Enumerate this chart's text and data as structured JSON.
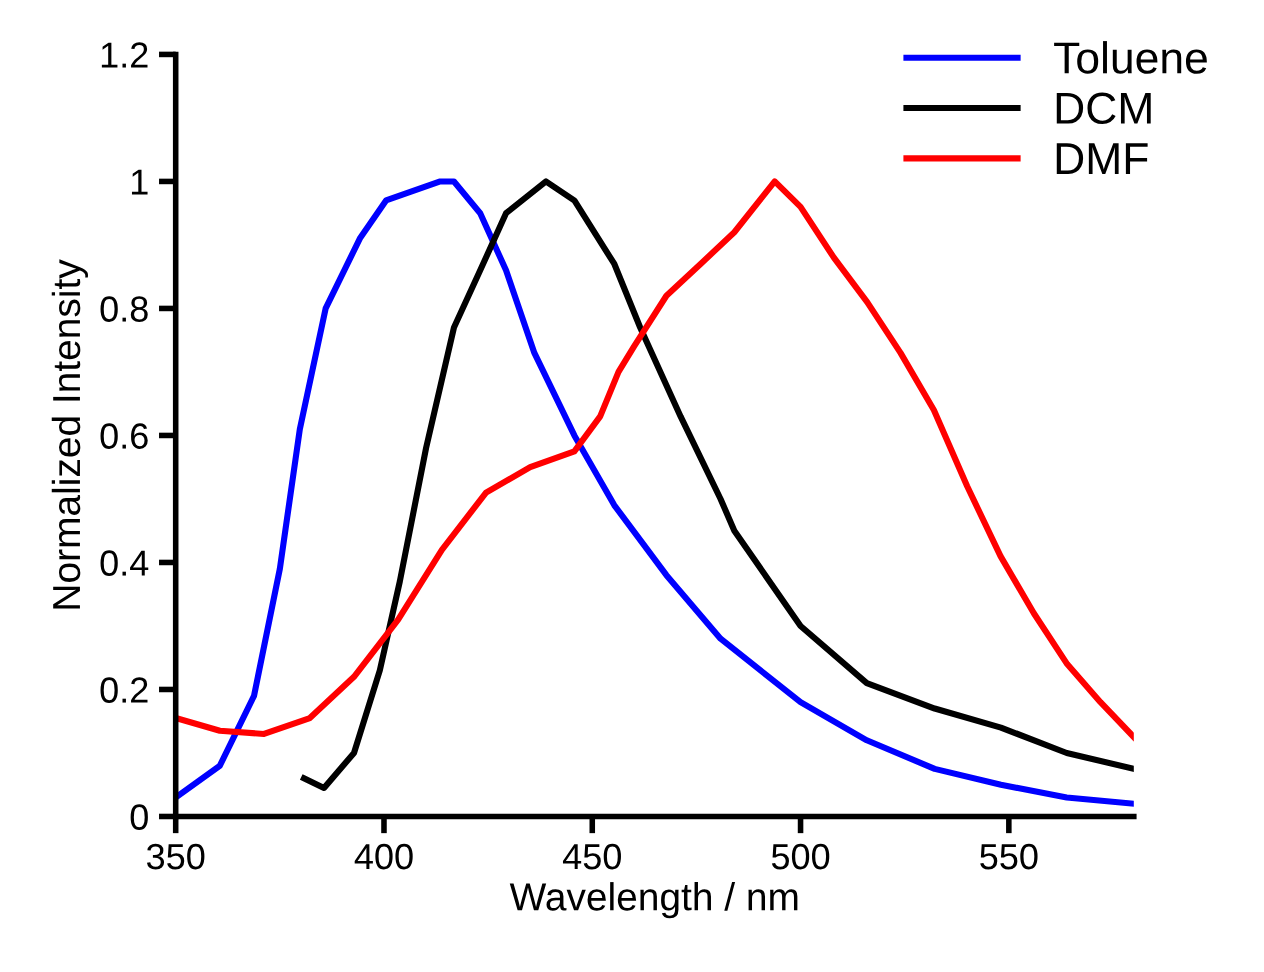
{
  "chart_data": {
    "type": "line",
    "xlabel": "Wavelength / nm",
    "ylabel": "Normalized Intensity",
    "xlim": [
      350,
      580
    ],
    "xticks": [
      350,
      400,
      450,
      500,
      550
    ],
    "ylim": [
      0,
      1.2
    ],
    "yticks": [
      0,
      0.2,
      0.4,
      0.6,
      0.8,
      1,
      1.2
    ],
    "grid": false,
    "legend": "top right",
    "marker": "none",
    "line_style": "solid",
    "series": [
      {
        "name": "Toluene",
        "color": "#0000ff",
        "x": [
          350,
          360.6,
          368.8,
          375,
          379.8,
          386,
          394.2,
          400.5,
          413.5,
          416.8,
          423.1,
          429.3,
          436.1,
          445.7,
          455.3,
          467.8,
          480.8,
          500,
          515.9,
          532.2,
          548.1,
          563.9,
          580
        ],
        "values": [
          0.03,
          0.08,
          0.19,
          0.39,
          0.61,
          0.8,
          0.91,
          0.97,
          1.0,
          1.0,
          0.95,
          0.86,
          0.73,
          0.6,
          0.49,
          0.38,
          0.28,
          0.18,
          0.12,
          0.075,
          0.05,
          0.03,
          0.02
        ]
      },
      {
        "name": "DCM",
        "color": "#000000",
        "x": [
          380.8,
          385.6,
          392.8,
          399,
          403.8,
          410.1,
          416.8,
          423.1,
          429.3,
          438.9,
          445.7,
          455.3,
          461.5,
          471.2,
          480.8,
          484.1,
          500,
          515.9,
          532.2,
          548.1,
          563.9,
          580
        ],
        "values": [
          0.06,
          0.045,
          0.1,
          0.23,
          0.37,
          0.58,
          0.77,
          0.86,
          0.95,
          1.0,
          0.97,
          0.87,
          0.77,
          0.63,
          0.5,
          0.45,
          0.3,
          0.21,
          0.17,
          0.14,
          0.1,
          0.075
        ]
      },
      {
        "name": "DMF",
        "color": "#ff0000",
        "x": [
          350,
          360.6,
          371.2,
          382.2,
          392.8,
          403.4,
          413.9,
          424.5,
          435.1,
          445.7,
          451.9,
          456.3,
          460,
          467.8,
          476,
          484.1,
          493.8,
          500,
          508,
          516,
          524,
          532,
          540,
          548,
          556,
          564,
          572,
          580
        ],
        "values": [
          0.155,
          0.135,
          0.13,
          0.155,
          0.22,
          0.31,
          0.42,
          0.51,
          0.55,
          0.575,
          0.63,
          0.7,
          0.74,
          0.82,
          0.87,
          0.92,
          1.0,
          0.96,
          0.88,
          0.81,
          0.73,
          0.64,
          0.52,
          0.41,
          0.32,
          0.24,
          0.18,
          0.125
        ]
      }
    ]
  }
}
